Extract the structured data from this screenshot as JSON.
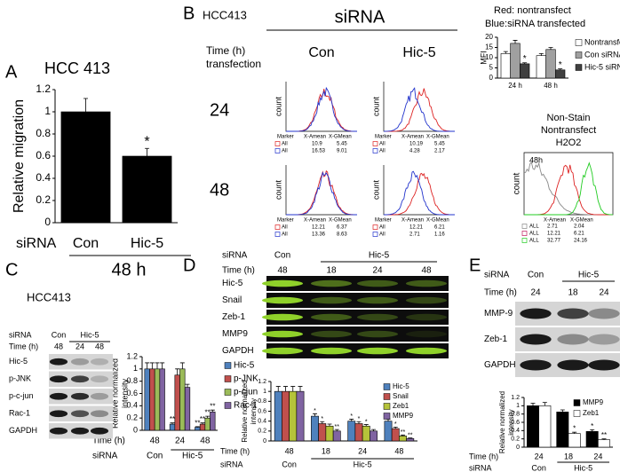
{
  "chart_data": [
    {
      "type": "bar",
      "title": "HCC 413",
      "ylabel": [
        "Relative migration"
      ],
      "ylim": [
        0,
        1.2
      ],
      "yticks": [
        0,
        0.2,
        0.4,
        0.6,
        0.8,
        1,
        1.2
      ],
      "categories": [
        "Con",
        "Hic-5"
      ],
      "x_row_labels": [
        "siRNA"
      ],
      "xlabel": "48 h",
      "series": [
        {
          "color": "#000000",
          "values": [
            1.0,
            0.6
          ],
          "errors": [
            0.12,
            0.07
          ],
          "significance": [
            null,
            "*"
          ]
        }
      ]
    },
    {
      "type": "bar",
      "ylabel": [
        "MFI"
      ],
      "ylim": [
        0,
        20
      ],
      "yticks": [
        0,
        5,
        10,
        15,
        20
      ],
      "categories": [
        "24 h",
        "48 h"
      ],
      "legend": "right",
      "series": [
        {
          "name": "Nontransfect",
          "color": "#ffffff",
          "values": [
            12,
            11
          ],
          "errors": [
            1,
            1
          ]
        },
        {
          "name": "Con siRNA",
          "color": "#a0a0a0",
          "values": [
            17,
            14
          ],
          "errors": [
            1.5,
            1
          ]
        },
        {
          "name": "Hic-5 siRNA",
          "color": "#404040",
          "values": [
            7,
            4
          ],
          "errors": [
            0.5,
            0.5
          ],
          "significance": [
            "*",
            "*"
          ]
        }
      ]
    },
    {
      "type": "bar",
      "ylabel": [
        "Relative normalized",
        "intensity"
      ],
      "ylim": [
        0,
        1.2
      ],
      "yticks": [
        0,
        0.2,
        0.4,
        0.6,
        0.8,
        1,
        1.2
      ],
      "categories": [
        "48",
        "24",
        "48"
      ],
      "group_labels": [
        "Con",
        "Hic-5",
        null
      ],
      "x_row_labels": [
        "Time (h)",
        "siRNA"
      ],
      "legend": "right",
      "series": [
        {
          "name": "Hic-5",
          "color": "#4f81bd",
          "values": [
            1,
            0.1,
            0.05
          ],
          "errors": [
            0.1,
            0.02,
            0.01
          ],
          "significance": [
            null,
            "**",
            "**"
          ]
        },
        {
          "name": "p-JNK",
          "color": "#c0504d",
          "values": [
            1,
            0.9,
            0.1
          ],
          "errors": [
            0.1,
            0.1,
            0.02
          ],
          "significance": [
            null,
            null,
            "**"
          ]
        },
        {
          "name": "p-cjun",
          "color": "#9bbb59",
          "values": [
            1,
            1,
            0.2
          ],
          "errors": [
            0.1,
            0.1,
            0.03
          ],
          "significance": [
            null,
            null,
            "**"
          ]
        },
        {
          "name": "Rac-1",
          "color": "#8064a2",
          "values": [
            1,
            0.7,
            0.3
          ],
          "errors": [
            0.1,
            0.05,
            0.03
          ],
          "significance": [
            null,
            null,
            "**"
          ]
        }
      ]
    },
    {
      "type": "bar",
      "ylabel": [
        "Relative normalized",
        "intensity"
      ],
      "ylim": [
        0,
        1.2
      ],
      "yticks": [
        0,
        0.2,
        0.4,
        0.6,
        0.8,
        1,
        1.2
      ],
      "categories": [
        "48",
        "18",
        "24",
        "48"
      ],
      "group_labels": [
        "Con",
        "Hic-5",
        null,
        null
      ],
      "x_row_labels": [
        "Time (h)",
        "siRNA"
      ],
      "legend": "upper right",
      "series": [
        {
          "name": "Hic-5",
          "color": "#4f81bd",
          "values": [
            1,
            0.5,
            0.4,
            0.4
          ],
          "errors": [
            0.1,
            0.05,
            0.04,
            0.04
          ],
          "significance": [
            null,
            "*",
            "*",
            "*"
          ]
        },
        {
          "name": "Snail",
          "color": "#c0504d",
          "values": [
            1,
            0.35,
            0.35,
            0.25
          ],
          "errors": [
            0.1,
            0.04,
            0.04,
            0.03
          ],
          "significance": [
            null,
            "*",
            "*",
            "*"
          ]
        },
        {
          "name": "Zeb1",
          "color": "#b5c33a",
          "values": [
            1,
            0.3,
            0.3,
            0.1
          ],
          "errors": [
            0.1,
            0.04,
            0.03,
            0.02
          ],
          "significance": [
            null,
            null,
            "*",
            "**"
          ]
        },
        {
          "name": "MMP9",
          "color": "#8064a2",
          "values": [
            1,
            0.2,
            0.2,
            0.05
          ],
          "errors": [
            0.1,
            0.03,
            0.03,
            0.01
          ],
          "significance": [
            null,
            "**",
            null,
            "**"
          ]
        }
      ]
    },
    {
      "type": "bar",
      "ylabel": [
        "Relative normalized",
        "intensity"
      ],
      "ylim": [
        0,
        1.2
      ],
      "yticks": [
        0,
        0.2,
        0.4,
        0.6,
        0.8,
        1,
        1.2
      ],
      "categories": [
        "24",
        "18",
        "24"
      ],
      "group_labels": [
        "Con",
        "Hic-5",
        null
      ],
      "x_row_labels": [
        "Time (h)",
        "siRNA"
      ],
      "legend": "upper right",
      "series": [
        {
          "name": "MMP9",
          "color": "#000000",
          "values": [
            1,
            0.85,
            0.38
          ],
          "errors": [
            0.06,
            0.05,
            0.04
          ],
          "significance": [
            null,
            null,
            "*"
          ]
        },
        {
          "name": "Zeb1",
          "color": "#ffffff",
          "values": [
            1,
            0.33,
            0.18
          ],
          "errors": [
            0.08,
            0.03,
            0.02
          ],
          "significance": [
            null,
            "*",
            "**"
          ]
        }
      ]
    }
  ],
  "figure": {
    "panel_labels": [
      "A",
      "B",
      "C",
      "D",
      "E"
    ],
    "flow": {
      "cell_line": "HCC413",
      "treatment": "siRNA",
      "note_red": "Red: nontransfect",
      "note_blue": "Blue:siRNA transfected",
      "row_title": [
        "Time (h)",
        "transfection"
      ],
      "columns": [
        "Con",
        "Hic-5"
      ],
      "rows": [
        "24",
        "48"
      ],
      "axis_label": "count",
      "header": [
        "Marker",
        "X-Amean",
        "X-GMean"
      ],
      "plots": [
        [
          [
            "All",
            "10.9",
            "5.45"
          ],
          [
            "All",
            "16.53",
            "9.01"
          ]
        ],
        [
          [
            "All",
            "10.19",
            "5.45"
          ],
          [
            "All",
            "4.28",
            "2.17"
          ]
        ],
        [
          [
            "All",
            "12.21",
            "6.37"
          ],
          [
            "All",
            "13.36",
            "8.63"
          ]
        ],
        [
          [
            "All",
            "12.21",
            "6.21"
          ],
          [
            "All",
            "2.71",
            "1.16"
          ]
        ]
      ]
    },
    "control_flow": {
      "legend": [
        "Non-Stain",
        "Nontransfect",
        "H2O2"
      ],
      "time": "48h",
      "axis_label": "count",
      "header": [
        "X-Amean",
        "X-GMean"
      ],
      "rows": [
        [
          "ALL",
          "2.71",
          "2.04"
        ],
        [
          "ALL",
          "12.21",
          "6.21"
        ],
        [
          "ALL",
          "32.77",
          "24.16"
        ]
      ]
    },
    "blots": [
      {
        "cell_line": "HCC413",
        "group_label": "siRNA",
        "time_label": "Time (h)",
        "groups": [
          "Con",
          "Hic-5"
        ],
        "times": [
          "48",
          "24",
          "48"
        ],
        "proteins": [
          "Hic-5",
          "p-JNK",
          "p-c-jun",
          "Rac-1",
          "GAPDH"
        ]
      },
      {
        "group_label": "siRNA",
        "time_label": "Time (h)",
        "groups": [
          "Con",
          "Hic-5"
        ],
        "times": [
          "48",
          "18",
          "24",
          "48"
        ],
        "proteins": [
          "Hic-5",
          "Snail",
          "Zeb-1",
          "MMP9",
          "GAPDH"
        ]
      },
      {
        "group_label": "siRNA",
        "time_label": "Time (h)",
        "groups": [
          "Con",
          "Hic-5"
        ],
        "times": [
          "24",
          "18",
          "24"
        ],
        "proteins": [
          "MMP-9",
          "Zeb-1",
          "GAPDH"
        ]
      }
    ]
  }
}
